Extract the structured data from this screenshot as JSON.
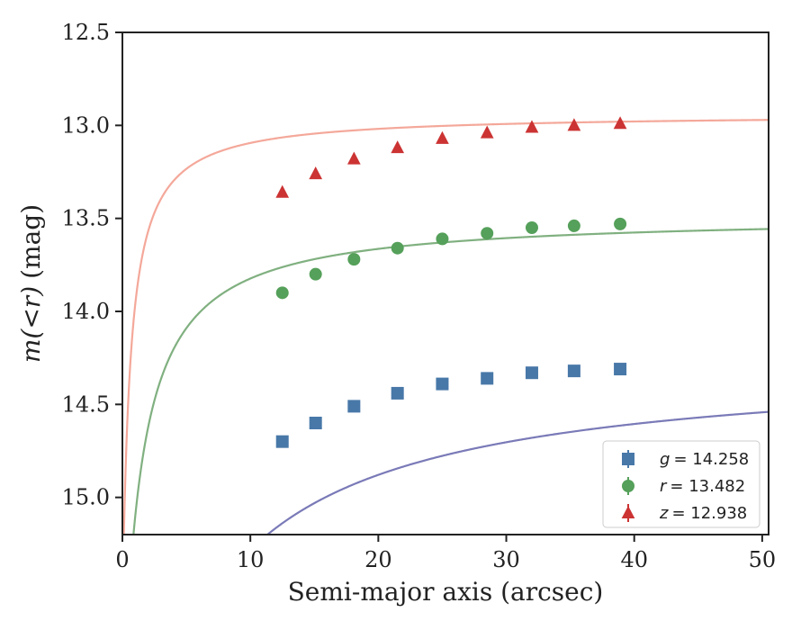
{
  "chart_data": {
    "type": "scatter",
    "title": "",
    "xlabel": "Semi-major axis (arcsec)",
    "ylabel_math": "m(<r)",
    "ylabel_unit": "(mag)",
    "xlim": [
      0,
      50.5
    ],
    "ylim": [
      15.2,
      12.5
    ],
    "y_inverted": true,
    "grid": false,
    "legend_position": "lower-right",
    "x_ticks": [
      0,
      10,
      20,
      30,
      40,
      50
    ],
    "x_tick_labels": [
      "0",
      "10",
      "20",
      "30",
      "40",
      "50"
    ],
    "y_ticks": [
      12.5,
      13.0,
      13.5,
      14.0,
      14.5,
      15.0
    ],
    "y_tick_labels": [
      "12.5",
      "13.0",
      "13.5",
      "14.0",
      "14.5",
      "15.0"
    ],
    "series": [
      {
        "name": "g",
        "legend_label": "g = 14.258",
        "marker": "square",
        "marker_color": "#4878a8",
        "curve_color": "#7a7ab8",
        "total": 14.258,
        "x": [
          12.5,
          15.1,
          18.1,
          21.5,
          25.0,
          28.5,
          32.0,
          35.3,
          38.9
        ],
        "y": [
          14.7,
          14.6,
          14.51,
          14.44,
          14.39,
          14.36,
          14.33,
          14.32,
          14.31
        ],
        "curve": {
          "m_total": 14.258,
          "a": 2.92,
          "b": 5.4
        }
      },
      {
        "name": "r",
        "legend_label": "r = 13.482",
        "marker": "circle",
        "marker_color": "#55a05a",
        "curve_color": "#80b080",
        "total": 13.482,
        "x": [
          12.5,
          15.1,
          18.1,
          21.5,
          25.0,
          28.5,
          32.0,
          35.3,
          38.9
        ],
        "y": [
          13.9,
          13.8,
          13.72,
          13.66,
          13.61,
          13.58,
          13.55,
          13.54,
          13.53
        ],
        "curve": {
          "m_total": 13.482,
          "a": 2.78,
          "b": 1.4
        }
      },
      {
        "name": "z",
        "legend_label": "z = 12.938",
        "marker": "triangle",
        "marker_color": "#cc3333",
        "curve_color": "#f4a89a",
        "total": 12.938,
        "x": [
          12.5,
          15.1,
          18.1,
          21.5,
          25.0,
          28.5,
          32.0,
          35.3,
          38.9
        ],
        "y": [
          13.36,
          13.26,
          13.18,
          13.12,
          13.07,
          13.04,
          13.01,
          13.0,
          12.99
        ],
        "curve": {
          "m_total": 12.938,
          "a": 2.68,
          "b": 0.62
        }
      }
    ],
    "legend": [
      {
        "prefix": "g",
        "value": "= 14.258"
      },
      {
        "prefix": "r",
        "value": "= 13.482"
      },
      {
        "prefix": "z",
        "value": "= 12.938"
      }
    ]
  }
}
